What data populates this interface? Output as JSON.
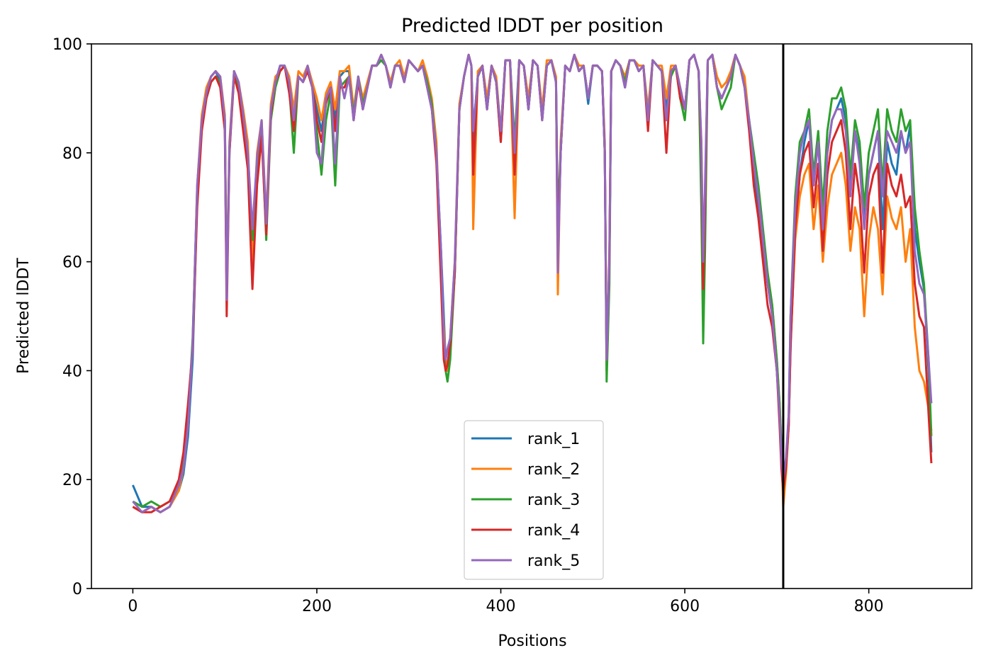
{
  "chart_data": {
    "type": "line",
    "title": "Predicted lDDT per position",
    "xlabel": "Positions",
    "ylabel": "Predicted lDDT",
    "xlim": [
      -45,
      912
    ],
    "ylim": [
      0,
      100
    ],
    "xticks": [
      0,
      200,
      400,
      600,
      800
    ],
    "yticks": [
      0,
      20,
      40,
      60,
      80,
      100
    ],
    "grid": false,
    "legend_position": "lower center",
    "vline_x": 707,
    "colors": {
      "rank_1": "#1f77b4",
      "rank_2": "#ff7f0e",
      "rank_3": "#2ca02c",
      "rank_4": "#d62728",
      "rank_5": "#9467bd",
      "vline": "#000000"
    },
    "x": [
      0,
      10,
      20,
      30,
      40,
      50,
      55,
      60,
      65,
      70,
      75,
      80,
      85,
      90,
      95,
      100,
      102,
      105,
      110,
      115,
      120,
      125,
      130,
      135,
      140,
      145,
      150,
      155,
      160,
      165,
      170,
      175,
      180,
      185,
      190,
      195,
      200,
      205,
      210,
      215,
      220,
      225,
      230,
      235,
      240,
      245,
      250,
      255,
      260,
      265,
      270,
      275,
      280,
      285,
      290,
      295,
      300,
      305,
      310,
      315,
      320,
      325,
      330,
      335,
      338,
      340,
      342,
      345,
      350,
      355,
      360,
      365,
      368,
      370,
      375,
      380,
      385,
      390,
      395,
      400,
      405,
      410,
      415,
      420,
      425,
      430,
      435,
      440,
      445,
      450,
      455,
      460,
      462,
      465,
      470,
      475,
      480,
      485,
      490,
      495,
      500,
      505,
      510,
      513,
      515,
      518,
      520,
      525,
      530,
      535,
      540,
      545,
      550,
      555,
      560,
      565,
      570,
      575,
      580,
      585,
      590,
      595,
      600,
      605,
      610,
      615,
      618,
      620,
      622,
      625,
      630,
      635,
      640,
      645,
      650,
      655,
      660,
      665,
      670,
      675,
      680,
      685,
      690,
      695,
      700,
      703,
      705,
      707,
      710,
      713,
      715,
      720,
      725,
      730,
      735,
      740,
      745,
      750,
      755,
      760,
      765,
      770,
      775,
      780,
      785,
      790,
      795,
      800,
      805,
      810,
      815,
      820,
      825,
      830,
      835,
      840,
      845,
      850,
      855,
      860,
      865,
      868
    ],
    "series": [
      {
        "name": "rank_1",
        "values": [
          19,
          15,
          15,
          14,
          15,
          18,
          21,
          28,
          42,
          72,
          86,
          91,
          94,
          95,
          93,
          85,
          54,
          80,
          95,
          92,
          86,
          79,
          62,
          77,
          85,
          66,
          88,
          93,
          96,
          96,
          92,
          86,
          94,
          93,
          96,
          92,
          88,
          84,
          90,
          92,
          86,
          94,
          95,
          95,
          86,
          94,
          88,
          92,
          96,
          96,
          98,
          96,
          92,
          96,
          96,
          93,
          97,
          96,
          95,
          96,
          92,
          88,
          80,
          62,
          50,
          42,
          40,
          44,
          58,
          88,
          94,
          98,
          96,
          82,
          94,
          96,
          88,
          96,
          93,
          82,
          97,
          97,
          80,
          97,
          96,
          88,
          97,
          96,
          87,
          96,
          97,
          93,
          60,
          80,
          96,
          95,
          98,
          95,
          96,
          89,
          96,
          96,
          95,
          80,
          40,
          60,
          95,
          97,
          96,
          92,
          97,
          97,
          95,
          96,
          85,
          97,
          96,
          95,
          88,
          95,
          96,
          91,
          88,
          97,
          98,
          95,
          80,
          50,
          70,
          97,
          98,
          92,
          90,
          92,
          94,
          98,
          96,
          93,
          85,
          76,
          70,
          62,
          56,
          50,
          40,
          32,
          24,
          18,
          22,
          30,
          45,
          65,
          76,
          82,
          86,
          75,
          82,
          68,
          80,
          86,
          88,
          90,
          86,
          75,
          84,
          80,
          68,
          76,
          80,
          84,
          66,
          82,
          78,
          76,
          84,
          80,
          85,
          66,
          60,
          55,
          40,
          25
        ]
      },
      {
        "name": "rank_2",
        "values": [
          15,
          14,
          15,
          14,
          15,
          18,
          22,
          30,
          45,
          74,
          87,
          92,
          94,
          95,
          94,
          87,
          55,
          82,
          95,
          93,
          88,
          82,
          60,
          80,
          86,
          68,
          89,
          94,
          95,
          96,
          94,
          88,
          95,
          94,
          96,
          93,
          90,
          86,
          91,
          93,
          88,
          95,
          95,
          96,
          88,
          94,
          90,
          93,
          96,
          96,
          98,
          96,
          93,
          96,
          97,
          94,
          97,
          96,
          95,
          97,
          94,
          90,
          82,
          58,
          48,
          42,
          40,
          46,
          60,
          89,
          94,
          98,
          96,
          66,
          95,
          96,
          90,
          96,
          94,
          84,
          97,
          97,
          68,
          97,
          96,
          90,
          97,
          96,
          88,
          97,
          97,
          94,
          54,
          82,
          96,
          95,
          98,
          96,
          96,
          90,
          96,
          96,
          95,
          82,
          40,
          62,
          95,
          97,
          96,
          94,
          97,
          97,
          96,
          96,
          88,
          97,
          96,
          96,
          90,
          96,
          96,
          92,
          88,
          97,
          98,
          95,
          82,
          60,
          72,
          97,
          98,
          94,
          92,
          93,
          95,
          98,
          96,
          94,
          86,
          78,
          72,
          64,
          58,
          52,
          42,
          34,
          26,
          15,
          21,
          30,
          45,
          64,
          72,
          76,
          78,
          66,
          74,
          60,
          70,
          76,
          78,
          80,
          74,
          62,
          70,
          66,
          50,
          64,
          70,
          66,
          54,
          72,
          68,
          66,
          70,
          60,
          66,
          48,
          40,
          38,
          33,
          29
        ]
      },
      {
        "name": "rank_3",
        "values": [
          16,
          15,
          16,
          15,
          16,
          19,
          23,
          31,
          46,
          73,
          85,
          90,
          93,
          94,
          93,
          86,
          54,
          81,
          94,
          92,
          86,
          80,
          64,
          78,
          85,
          64,
          86,
          92,
          95,
          96,
          92,
          80,
          94,
          93,
          95,
          92,
          84,
          76,
          86,
          91,
          74,
          92,
          93,
          94,
          87,
          94,
          89,
          92,
          96,
          96,
          97,
          96,
          92,
          96,
          96,
          93,
          97,
          96,
          95,
          96,
          93,
          89,
          80,
          58,
          44,
          40,
          38,
          42,
          58,
          88,
          94,
          98,
          96,
          84,
          94,
          96,
          88,
          96,
          93,
          84,
          97,
          97,
          82,
          97,
          96,
          88,
          97,
          96,
          86,
          96,
          97,
          93,
          68,
          80,
          96,
          95,
          98,
          95,
          96,
          90,
          96,
          96,
          95,
          80,
          38,
          56,
          95,
          97,
          96,
          93,
          97,
          97,
          95,
          96,
          86,
          97,
          96,
          95,
          86,
          94,
          96,
          90,
          86,
          97,
          98,
          95,
          70,
          45,
          62,
          97,
          98,
          92,
          88,
          90,
          92,
          98,
          96,
          92,
          86,
          80,
          74,
          66,
          58,
          52,
          42,
          34,
          26,
          18,
          22,
          32,
          50,
          72,
          82,
          84,
          88,
          76,
          84,
          70,
          84,
          90,
          90,
          92,
          88,
          76,
          86,
          82,
          70,
          80,
          84,
          88,
          74,
          88,
          84,
          82,
          88,
          84,
          86,
          70,
          62,
          56,
          42,
          28
        ]
      },
      {
        "name": "rank_4",
        "values": [
          15,
          14,
          14,
          15,
          16,
          20,
          25,
          34,
          44,
          70,
          84,
          90,
          93,
          94,
          92,
          84,
          50,
          80,
          94,
          91,
          84,
          77,
          55,
          74,
          83,
          65,
          87,
          93,
          95,
          96,
          91,
          84,
          94,
          93,
          95,
          92,
          86,
          82,
          89,
          92,
          84,
          92,
          92,
          94,
          86,
          93,
          88,
          92,
          96,
          96,
          98,
          96,
          92,
          96,
          96,
          93,
          97,
          96,
          95,
          96,
          92,
          88,
          78,
          56,
          42,
          40,
          41,
          45,
          58,
          88,
          94,
          98,
          96,
          76,
          94,
          96,
          88,
          96,
          93,
          82,
          97,
          97,
          76,
          97,
          96,
          88,
          97,
          96,
          86,
          96,
          97,
          93,
          62,
          80,
          96,
          95,
          98,
          95,
          96,
          90,
          96,
          96,
          95,
          80,
          42,
          60,
          95,
          97,
          96,
          92,
          97,
          97,
          95,
          96,
          84,
          97,
          96,
          95,
          80,
          95,
          96,
          90,
          88,
          97,
          98,
          95,
          80,
          55,
          70,
          97,
          98,
          92,
          90,
          92,
          94,
          98,
          96,
          92,
          84,
          74,
          68,
          60,
          52,
          48,
          40,
          30,
          22,
          18,
          22,
          30,
          44,
          66,
          76,
          80,
          82,
          70,
          78,
          62,
          76,
          82,
          84,
          86,
          80,
          66,
          78,
          72,
          58,
          72,
          76,
          78,
          58,
          78,
          74,
          72,
          76,
          70,
          72,
          56,
          50,
          48,
          32,
          23
        ]
      },
      {
        "name": "rank_5",
        "values": [
          16,
          14,
          15,
          14,
          15,
          19,
          22,
          30,
          45,
          74,
          86,
          91,
          94,
          95,
          94,
          86,
          53,
          81,
          95,
          93,
          87,
          80,
          66,
          79,
          86,
          67,
          88,
          93,
          96,
          96,
          93,
          86,
          94,
          93,
          96,
          92,
          80,
          78,
          90,
          92,
          78,
          94,
          90,
          94,
          86,
          94,
          88,
          92,
          96,
          96,
          98,
          96,
          92,
          96,
          96,
          93,
          97,
          96,
          95,
          96,
          92,
          88,
          80,
          62,
          46,
          42,
          44,
          46,
          60,
          88,
          94,
          98,
          96,
          84,
          94,
          96,
          88,
          96,
          93,
          84,
          97,
          97,
          80,
          97,
          96,
          88,
          97,
          96,
          86,
          96,
          97,
          93,
          58,
          80,
          96,
          95,
          98,
          95,
          96,
          90,
          96,
          96,
          95,
          80,
          42,
          60,
          95,
          97,
          96,
          92,
          97,
          97,
          95,
          96,
          86,
          97,
          96,
          95,
          86,
          95,
          96,
          92,
          88,
          97,
          98,
          95,
          82,
          60,
          74,
          97,
          98,
          92,
          90,
          92,
          94,
          98,
          96,
          92,
          86,
          78,
          72,
          64,
          56,
          50,
          40,
          32,
          24,
          20,
          24,
          32,
          50,
          70,
          80,
          84,
          86,
          74,
          82,
          66,
          80,
          86,
          88,
          88,
          84,
          72,
          84,
          78,
          66,
          76,
          80,
          84,
          72,
          84,
          82,
          80,
          84,
          80,
          82,
          62,
          56,
          54,
          42,
          34
        ]
      }
    ]
  }
}
